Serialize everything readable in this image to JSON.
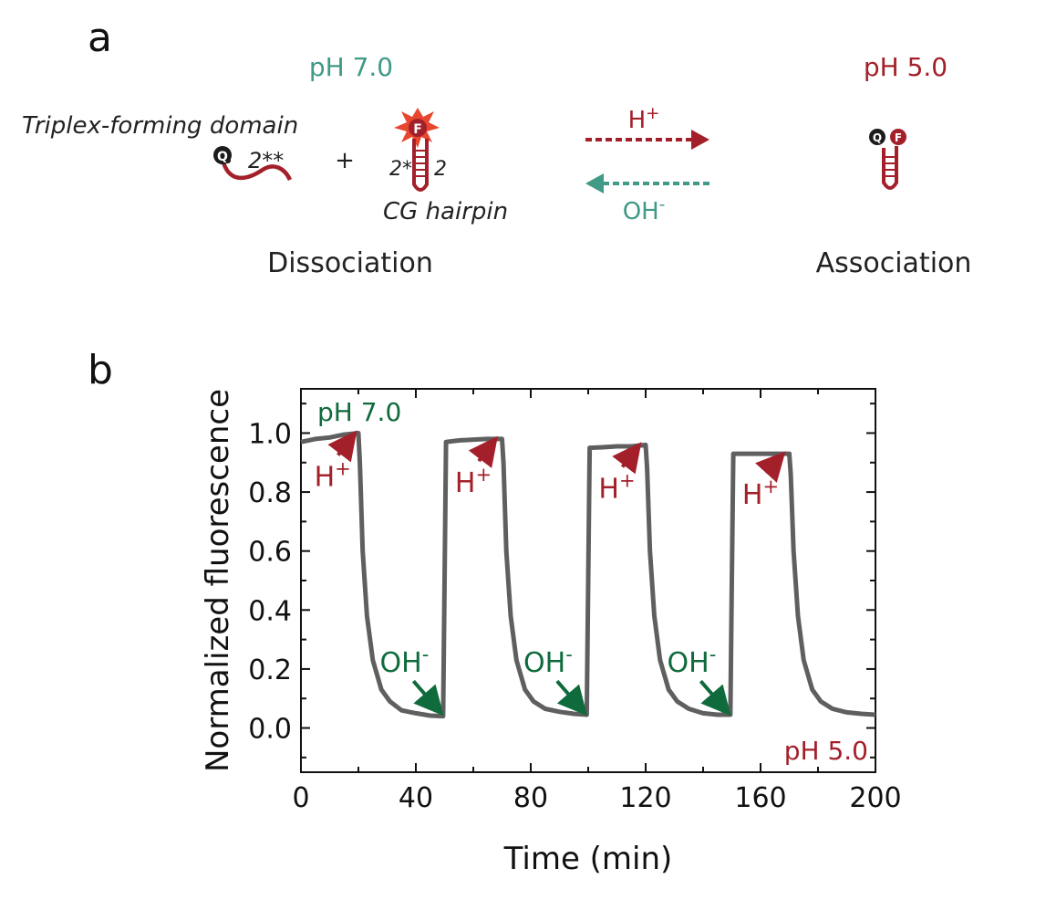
{
  "panel_a": {
    "label": "a",
    "left_state": "pH 7.0",
    "right_state": "pH 5.0",
    "triplex_label": "Triplex-forming domain",
    "domain_2ss": "2**",
    "plus": "+",
    "hairpin_label": "CG hairpin",
    "hairpin_2s": "2*",
    "hairpin_2": "2",
    "quencher": "Q",
    "fluorophore": "F",
    "forward_arrow_label": "H+",
    "reverse_arrow_label": "OH-",
    "left_caption": "Dissociation",
    "right_caption": "Association"
  },
  "panel_b": {
    "label": "b",
    "start_state": "pH 7.0",
    "end_state": "pH 5.0"
  },
  "colors": {
    "teal": "#3f9a86",
    "darkred": "#a3202a",
    "green": "#0f6b3c",
    "trace": "#5f5f5f"
  },
  "chart_data": {
    "type": "line",
    "xlabel": "Time (min)",
    "ylabel": "Normalized fluorescence",
    "xlim": [
      0,
      200
    ],
    "ylim": [
      -0.15,
      1.15
    ],
    "xticks": [
      0,
      40,
      80,
      120,
      160,
      200
    ],
    "yticks": [
      0.0,
      0.2,
      0.4,
      0.6,
      0.8,
      1.0
    ],
    "xtick_labels": [
      "0",
      "40",
      "80",
      "120",
      "160",
      "200"
    ],
    "ytick_labels": [
      "0.0",
      "0.2",
      "0.4",
      "0.6",
      "0.8",
      "1.0"
    ],
    "grid": false,
    "series": [
      {
        "x": [
          0,
          5,
          10,
          15,
          20,
          20.5,
          21.5,
          23,
          25,
          28,
          31,
          35,
          40,
          45,
          49.5,
          50,
          50.5,
          55,
          60,
          65,
          70,
          70.5,
          71.5,
          73,
          75,
          78,
          81,
          85,
          90,
          95,
          99.5,
          100,
          100.5,
          105,
          110,
          115,
          120,
          120.5,
          121.5,
          123,
          125,
          128,
          131,
          135,
          140,
          145,
          149.5,
          150,
          150.5,
          155,
          160,
          165,
          170,
          170.5,
          171.5,
          173,
          175,
          178,
          181,
          185,
          190,
          195,
          200
        ],
        "y": [
          0.97,
          0.98,
          0.985,
          0.995,
          1.0,
          0.9,
          0.6,
          0.38,
          0.23,
          0.13,
          0.09,
          0.06,
          0.05,
          0.042,
          0.04,
          0.5,
          0.97,
          0.975,
          0.978,
          0.98,
          0.98,
          0.9,
          0.6,
          0.38,
          0.23,
          0.13,
          0.09,
          0.065,
          0.055,
          0.048,
          0.045,
          0.5,
          0.95,
          0.952,
          0.955,
          0.955,
          0.96,
          0.88,
          0.6,
          0.38,
          0.23,
          0.13,
          0.09,
          0.065,
          0.05,
          0.045,
          0.045,
          0.5,
          0.93,
          0.93,
          0.93,
          0.93,
          0.93,
          0.86,
          0.6,
          0.38,
          0.23,
          0.13,
          0.09,
          0.065,
          0.053,
          0.048,
          0.045
        ]
      }
    ],
    "annotations": [
      {
        "text": "H+",
        "x": 11,
        "y": 0.82,
        "arrow_to": [
          18,
          0.99
        ]
      },
      {
        "text": "H+",
        "x": 60,
        "y": 0.8,
        "arrow_to": [
          67,
          0.97
        ]
      },
      {
        "text": "H+",
        "x": 110,
        "y": 0.78,
        "arrow_to": [
          117,
          0.95
        ]
      },
      {
        "text": "H+",
        "x": 160,
        "y": 0.76,
        "arrow_to": [
          167,
          0.92
        ]
      },
      {
        "text": "OH-",
        "x": 36,
        "y": 0.19,
        "arrow_to": [
          48,
          0.06
        ]
      },
      {
        "text": "OH-",
        "x": 86,
        "y": 0.19,
        "arrow_to": [
          98,
          0.06
        ]
      },
      {
        "text": "OH-",
        "x": 136,
        "y": 0.19,
        "arrow_to": [
          148,
          0.06
        ]
      }
    ]
  }
}
